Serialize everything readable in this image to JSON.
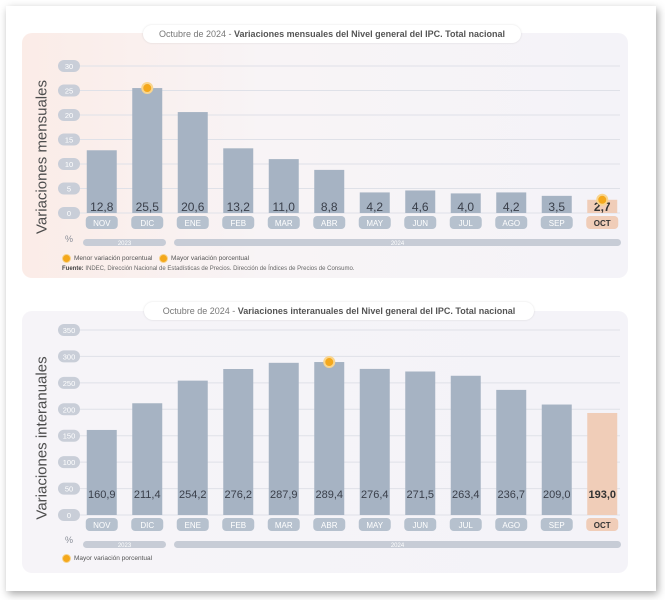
{
  "chart_data": [
    {
      "type": "bar",
      "title_prefix": "Octubre de 2024 - ",
      "title": "Variaciones mensuales del Nivel general del IPC. Total nacional",
      "ylabel": "Variaciones mensuales",
      "unit": "%",
      "ylim": [
        0,
        30
      ],
      "yticks": [
        0,
        5,
        10,
        15,
        20,
        25,
        30
      ],
      "categories": [
        "NOV",
        "DIC",
        "ENE",
        "FEB",
        "MAR",
        "ABR",
        "MAY",
        "JUN",
        "JUL",
        "AGO",
        "SEP",
        "OCT"
      ],
      "values": [
        12.8,
        25.5,
        20.6,
        13.2,
        11.0,
        8.8,
        4.2,
        4.6,
        4.0,
        4.2,
        3.5,
        2.7
      ],
      "value_labels": [
        "12,8",
        "25,5",
        "20,6",
        "13,2",
        "11,0",
        "8,8",
        "4,2",
        "4,6",
        "4,0",
        "4,2",
        "3,5",
        "2,7"
      ],
      "highlight_index": 11,
      "max_marker_index": 1,
      "min_marker_index": 11,
      "year_groups": [
        {
          "label": "2023",
          "start": 0,
          "end": 1
        },
        {
          "label": "2024",
          "start": 2,
          "end": 11
        }
      ],
      "legend": [
        "Menor variación porcentual",
        "Mayor variación porcentual"
      ],
      "source_label": "Fuente:",
      "source_text": "INDEC, Dirección Nacional de Estadísticas de Precios. Dirección de Índices de Precios de Consumo.",
      "colors": {
        "bar": "#a6b3c3",
        "highlight": "#f0cdb8",
        "marker": "#f4a81c",
        "tick_pill": "#b6c1ce",
        "tick_pill_highlight": "#f0cdb8"
      }
    },
    {
      "type": "bar",
      "title_prefix": "Octubre de 2024 - ",
      "title": "Variaciones interanuales del Nivel general del IPC. Total nacional",
      "ylabel": "Variaciones interanuales",
      "unit": "%",
      "ylim": [
        0,
        350
      ],
      "yticks": [
        0,
        50,
        100,
        150,
        200,
        250,
        300,
        350
      ],
      "categories": [
        "NOV",
        "DIC",
        "ENE",
        "FEB",
        "MAR",
        "ABR",
        "MAY",
        "JUN",
        "JUL",
        "AGO",
        "SEP",
        "OCT"
      ],
      "values": [
        160.9,
        211.4,
        254.2,
        276.2,
        287.9,
        289.4,
        276.4,
        271.5,
        263.4,
        236.7,
        209.0,
        193.0
      ],
      "value_labels": [
        "160,9",
        "211,4",
        "254,2",
        "276,2",
        "287,9",
        "289,4",
        "276,4",
        "271,5",
        "263,4",
        "236,7",
        "209,0",
        "193,0"
      ],
      "highlight_index": 11,
      "max_marker_index": 5,
      "year_groups": [
        {
          "label": "2023",
          "start": 0,
          "end": 1
        },
        {
          "label": "2024",
          "start": 2,
          "end": 11
        }
      ],
      "legend": [
        "Mayor variación porcentual"
      ],
      "colors": {
        "bar": "#a6b3c3",
        "highlight": "#f0cdb8",
        "marker": "#f4a81c",
        "tick_pill": "#b6c1ce",
        "tick_pill_highlight": "#f0cdb8"
      }
    }
  ]
}
